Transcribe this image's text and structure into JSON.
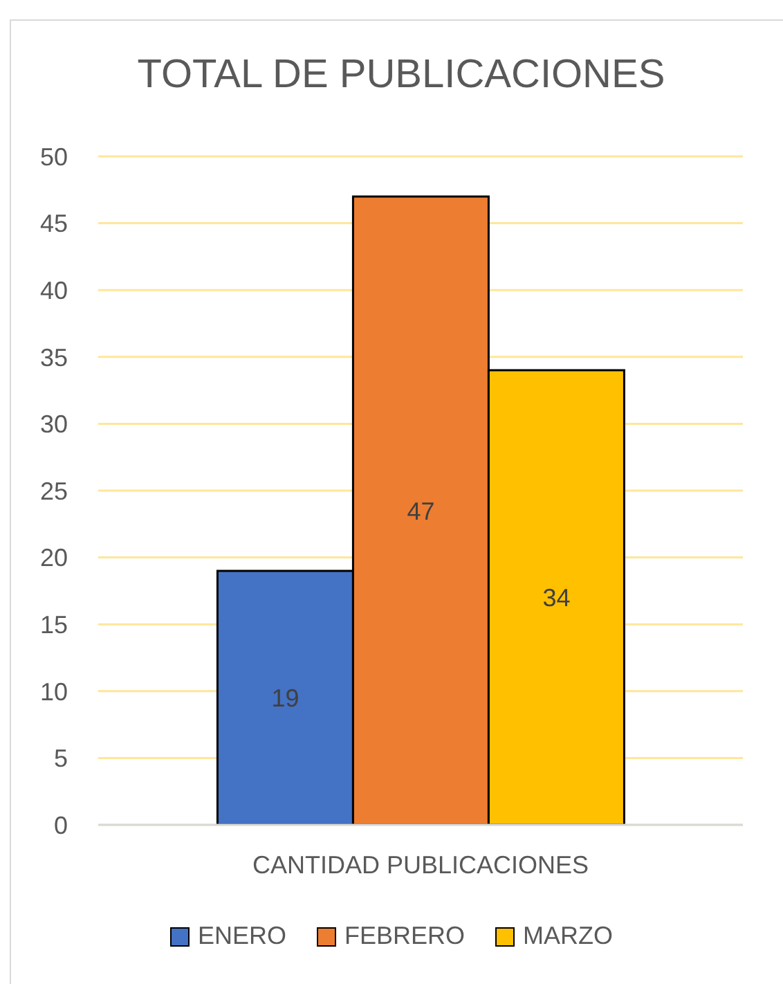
{
  "chart_data": {
    "type": "bar",
    "title": "TOTAL DE PUBLICACIONES",
    "categories": [
      "CANTIDAD PUBLICACIONES"
    ],
    "series": [
      {
        "name": "ENERO",
        "color": "#4472c4",
        "values": [
          19
        ]
      },
      {
        "name": "FEBRERO",
        "color": "#ed7d31",
        "values": [
          47
        ]
      },
      {
        "name": "MARZO",
        "color": "#ffc000",
        "values": [
          34
        ]
      }
    ],
    "ylim": [
      0,
      50
    ],
    "yticks": [
      0,
      5,
      10,
      15,
      20,
      25,
      30,
      35,
      40,
      45,
      50
    ],
    "grid": "y",
    "legend": "bottom",
    "data_labels": true
  }
}
